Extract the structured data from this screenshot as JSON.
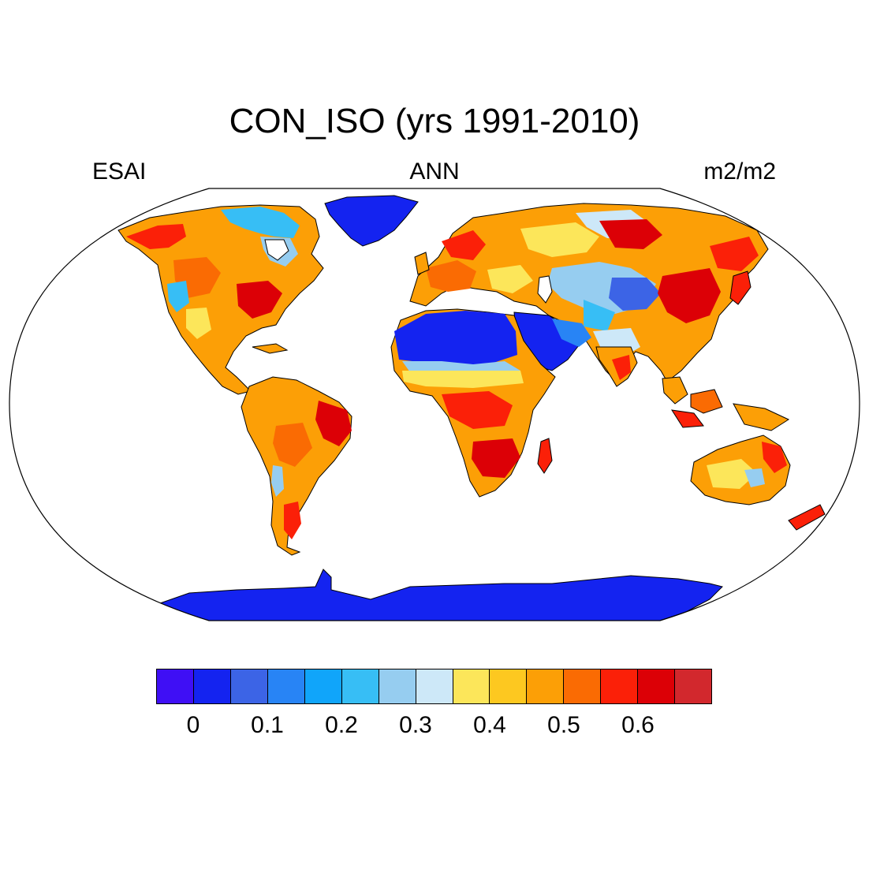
{
  "title": "CON_ISO (yrs 1991-2010)",
  "left_label": "ESAI",
  "center_label": "ANN",
  "right_label": "m2/m2",
  "map": {
    "projection": "Robinson",
    "variable": "ESAI",
    "period": "ANN",
    "units": "m2/m2",
    "ocean_color": "#ffffff",
    "outline_color": "#000000"
  },
  "colorbar": {
    "colors": [
      "#3f0ff5",
      "#1423f0",
      "#3c64e6",
      "#2884f5",
      "#10a5fa",
      "#37bef5",
      "#96cdf0",
      "#cde8f8",
      "#fce65a",
      "#fdc820",
      "#fc9f06",
      "#fa6b03",
      "#fb2008",
      "#dc0006",
      "#d2282d"
    ],
    "tick_labels": [
      "0",
      "0.1",
      "0.2",
      "0.3",
      "0.4",
      "0.5",
      "0.6"
    ],
    "tick_values": [
      0,
      0.1,
      0.2,
      0.3,
      0.4,
      0.5,
      0.6
    ],
    "tick_boundary_index": [
      1,
      3,
      5,
      7,
      9,
      11,
      13
    ]
  }
}
